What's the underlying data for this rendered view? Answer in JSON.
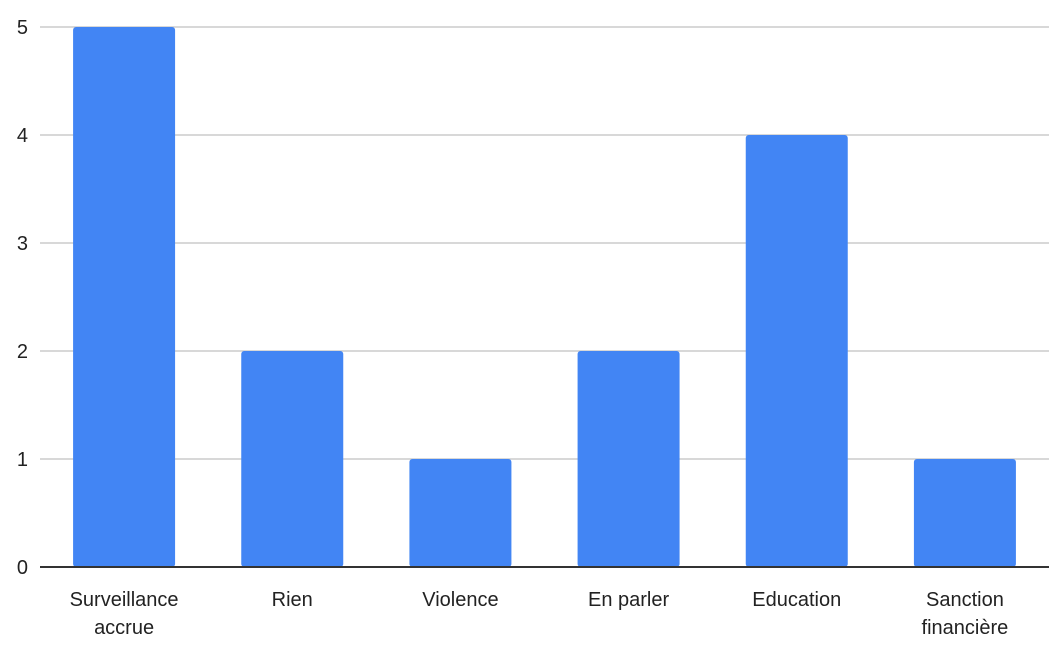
{
  "chart_data": {
    "type": "bar",
    "categories": [
      [
        "Surveillance",
        "accrue"
      ],
      [
        "Rien"
      ],
      [
        "Violence"
      ],
      [
        "En parler"
      ],
      [
        "Education"
      ],
      [
        "Sanction",
        "financière"
      ]
    ],
    "values": [
      5,
      2,
      1,
      2,
      4,
      1
    ],
    "yticks": [
      "0",
      "1",
      "2",
      "3",
      "4",
      "5"
    ],
    "ylim": [
      0,
      5
    ],
    "grid": true,
    "bar_color": "#4285f4",
    "grid_color": "#cccccc",
    "axis_color": "#333333"
  }
}
